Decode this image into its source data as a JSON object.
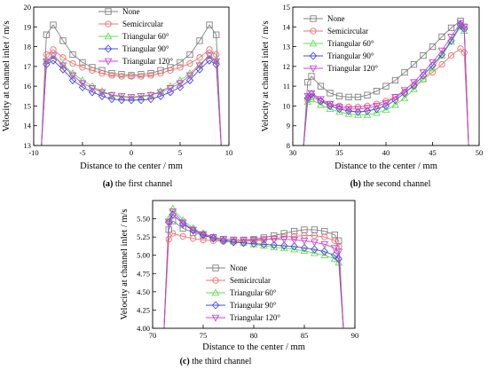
{
  "colors": {
    "None": "#808080",
    "Semicircular": "#f07070",
    "Triangular 60°": "#66dd55",
    "Triangular 90°": "#4a4ad8",
    "Triangular 120°": "#cc44cc"
  },
  "marker_shapes": {
    "None": "square",
    "Semicircular": "circle",
    "Triangular 60°": "triangle-up",
    "Triangular 90°": "diamond",
    "Triangular 120°": "triangle-down"
  },
  "chart_data": [
    {
      "type": "line",
      "caption_bold": "(a)",
      "caption_rest": " the first channel",
      "xlabel": "Distance to the center / mm",
      "ylabel": "Velocity at channel inlet / m/s",
      "xlim": [
        -10,
        10
      ],
      "ylim": [
        13,
        20
      ],
      "xticks": [
        -10,
        -5,
        0,
        5,
        10
      ],
      "yticks": [
        13,
        14,
        15,
        16,
        17,
        18,
        19,
        20
      ],
      "legend": [
        "None",
        "Semicircular",
        "Triangular 60°",
        "Triangular 90°",
        "Triangular 120°"
      ],
      "legend_position": "top-center",
      "x": [
        -8.7,
        -8,
        -7,
        -6,
        -5,
        -4,
        -3,
        -2,
        -1,
        0,
        1,
        2,
        3,
        4,
        5,
        6,
        7,
        8,
        8.7
      ],
      "wall": [
        -9.25,
        9.25
      ],
      "series": [
        {
          "name": "None",
          "values": [
            18.6,
            19.1,
            18.3,
            17.6,
            17.2,
            16.95,
            16.8,
            16.65,
            16.6,
            16.55,
            16.6,
            16.65,
            16.8,
            16.95,
            17.2,
            17.6,
            18.3,
            19.1,
            18.6
          ]
        },
        {
          "name": "Semicircular",
          "values": [
            17.6,
            17.85,
            17.45,
            17.15,
            16.95,
            16.8,
            16.65,
            16.55,
            16.5,
            16.5,
            16.5,
            16.55,
            16.65,
            16.8,
            16.95,
            17.15,
            17.45,
            17.85,
            17.6
          ]
        },
        {
          "name": "Triangular 60°",
          "values": [
            17.3,
            17.55,
            17.1,
            16.65,
            16.3,
            16.0,
            15.75,
            15.55,
            15.45,
            15.4,
            15.45,
            15.55,
            15.75,
            16.0,
            16.3,
            16.65,
            17.1,
            17.55,
            17.3
          ]
        },
        {
          "name": "Triangular 90°",
          "values": [
            17.1,
            17.3,
            16.85,
            16.3,
            15.95,
            15.7,
            15.5,
            15.35,
            15.3,
            15.3,
            15.3,
            15.35,
            15.5,
            15.7,
            15.95,
            16.3,
            16.85,
            17.3,
            17.1
          ]
        },
        {
          "name": "Triangular 120°",
          "values": [
            17.25,
            17.55,
            17.05,
            16.55,
            16.15,
            15.9,
            15.7,
            15.55,
            15.5,
            15.45,
            15.5,
            15.55,
            15.7,
            15.9,
            16.15,
            16.55,
            17.05,
            17.55,
            17.25
          ]
        }
      ]
    },
    {
      "type": "line",
      "caption_bold": "(b)",
      "caption_rest": " the second channel",
      "xlabel": "Distance to the center / mm",
      "ylabel": "Velocity at channel inlet / m/s",
      "xlim": [
        30,
        50
      ],
      "ylim": [
        8,
        15
      ],
      "xticks": [
        30,
        35,
        40,
        45,
        50
      ],
      "yticks": [
        8,
        9,
        10,
        11,
        12,
        13,
        14,
        15
      ],
      "legend": [
        "None",
        "Semicircular",
        "Triangular 60°",
        "Triangular 90°",
        "Triangular 120°"
      ],
      "legend_position": "top-left",
      "x": [
        31.6,
        32,
        33,
        34,
        35,
        36,
        37,
        38,
        39,
        40,
        41,
        42,
        43,
        44,
        45,
        46,
        47,
        48,
        48.4
      ],
      "wall": [
        31.1,
        48.9
      ],
      "series": [
        {
          "name": "None",
          "values": [
            11.2,
            11.5,
            11.0,
            10.65,
            10.5,
            10.45,
            10.45,
            10.55,
            10.75,
            11.0,
            11.3,
            11.7,
            12.1,
            12.55,
            13.0,
            13.5,
            13.95,
            14.3,
            14.0
          ]
        },
        {
          "name": "Semicircular",
          "values": [
            10.3,
            10.45,
            10.25,
            10.1,
            10.0,
            9.95,
            9.95,
            10.0,
            10.1,
            10.25,
            10.45,
            10.7,
            11.0,
            11.35,
            11.7,
            12.1,
            12.55,
            12.9,
            12.7
          ]
        },
        {
          "name": "Triangular 60°",
          "values": [
            10.2,
            10.35,
            10.05,
            9.85,
            9.7,
            9.6,
            9.55,
            9.55,
            9.65,
            9.8,
            10.05,
            10.4,
            10.85,
            11.35,
            11.9,
            12.55,
            13.25,
            14.0,
            13.8
          ]
        },
        {
          "name": "Triangular 90°",
          "values": [
            10.4,
            10.6,
            10.25,
            10.0,
            9.85,
            9.75,
            9.7,
            9.75,
            9.85,
            10.0,
            10.3,
            10.65,
            11.05,
            11.55,
            12.05,
            12.6,
            13.3,
            14.1,
            13.9
          ]
        },
        {
          "name": "Triangular 120°",
          "values": [
            10.5,
            10.65,
            10.35,
            10.1,
            9.95,
            9.85,
            9.85,
            9.9,
            10.0,
            10.15,
            10.45,
            10.8,
            11.2,
            11.7,
            12.2,
            12.8,
            13.5,
            14.2,
            14.0
          ]
        }
      ]
    },
    {
      "type": "line",
      "caption_bold": "(c)",
      "caption_rest": " the third channel",
      "xlabel": "Distance to the center / mm",
      "ylabel": "Velocity at channel inlet / m/s",
      "xlim": [
        70,
        90
      ],
      "ylim": [
        4.0,
        5.75
      ],
      "xticks": [
        70,
        75,
        80,
        85,
        90
      ],
      "yticks": [
        4.0,
        4.25,
        4.5,
        4.75,
        5.0,
        5.25,
        5.5
      ],
      "ytick_labels": [
        "4.00",
        "4.25",
        "4.50",
        "4.75",
        "5.00",
        "5.25",
        "5.50"
      ],
      "legend": [
        "None",
        "Semicircular",
        "Triangular 60°",
        "Triangular 90°",
        "Triangular 120°"
      ],
      "legend_position": "lower-left",
      "x": [
        71.6,
        72,
        73,
        74,
        75,
        76,
        77,
        78,
        79,
        80,
        81,
        82,
        83,
        84,
        85,
        86,
        87,
        88,
        88.4
      ],
      "wall": [
        71.1,
        88.9
      ],
      "series": [
        {
          "name": "None",
          "values": [
            5.35,
            5.47,
            5.37,
            5.31,
            5.27,
            5.24,
            5.22,
            5.21,
            5.21,
            5.22,
            5.24,
            5.27,
            5.3,
            5.33,
            5.35,
            5.35,
            5.33,
            5.28,
            5.2
          ]
        },
        {
          "name": "Semicircular",
          "values": [
            5.22,
            5.3,
            5.26,
            5.23,
            5.21,
            5.2,
            5.19,
            5.19,
            5.19,
            5.2,
            5.21,
            5.23,
            5.25,
            5.26,
            5.27,
            5.27,
            5.25,
            5.2,
            5.12
          ]
        },
        {
          "name": "Triangular 60°",
          "values": [
            5.5,
            5.64,
            5.48,
            5.37,
            5.3,
            5.25,
            5.21,
            5.19,
            5.17,
            5.15,
            5.13,
            5.11,
            5.1,
            5.08,
            5.06,
            5.03,
            5.0,
            4.95,
            4.9
          ]
        },
        {
          "name": "Triangular 90°",
          "values": [
            5.45,
            5.56,
            5.43,
            5.34,
            5.28,
            5.23,
            5.2,
            5.18,
            5.17,
            5.16,
            5.15,
            5.14,
            5.13,
            5.12,
            5.1,
            5.08,
            5.05,
            5.0,
            4.95
          ]
        },
        {
          "name": "Triangular 120°",
          "values": [
            5.46,
            5.6,
            5.45,
            5.35,
            5.29,
            5.25,
            5.22,
            5.21,
            5.21,
            5.21,
            5.22,
            5.22,
            5.22,
            5.21,
            5.2,
            5.18,
            5.15,
            5.1,
            5.05
          ]
        }
      ]
    }
  ]
}
